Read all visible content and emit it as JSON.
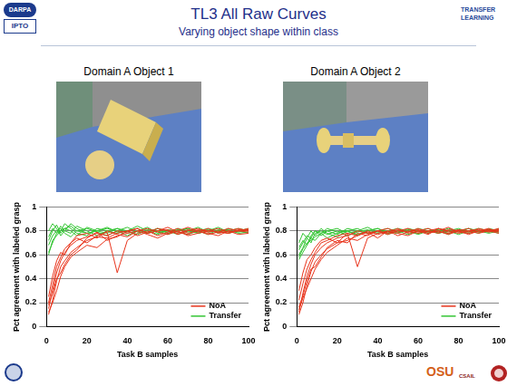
{
  "slide": {
    "logos": [
      "DARPA",
      "IPTO",
      "TRANSFER LEARNING",
      "OSU",
      "CSAIL"
    ],
    "title": "TL3 All Raw Curves",
    "subtitle": "Varying object shape within class",
    "panels": [
      "Domain A Object 1",
      "Domain A Object 2"
    ]
  },
  "chart_data": [
    {
      "type": "line",
      "x_label": "Task B samples",
      "y_label": "Pct agreement with labeled grasp",
      "x": [
        1,
        3,
        5,
        7,
        9,
        12,
        15,
        20,
        25,
        30,
        35,
        40,
        45,
        50,
        55,
        60,
        65,
        70,
        75,
        80,
        85,
        90,
        95,
        100
      ],
      "xlim": [
        0,
        100
      ],
      "xticks": [
        0,
        20,
        40,
        60,
        80,
        100
      ],
      "ylim": [
        0,
        1
      ],
      "yticks": [
        0,
        0.2,
        0.4,
        0.6,
        0.8,
        1
      ],
      "grid": "y",
      "legend": "lower right",
      "series": [
        {
          "name": "NoA",
          "color": "#e8341c",
          "values": [
            0.15,
            0.3,
            0.45,
            0.55,
            0.62,
            0.68,
            0.72,
            0.75,
            0.78,
            0.76,
            0.8,
            0.79,
            0.82,
            0.78,
            0.8,
            0.81,
            0.77,
            0.8,
            0.82,
            0.79,
            0.8,
            0.78,
            0.81,
            0.8
          ]
        },
        {
          "name": "NoA",
          "color": "#e8341c",
          "values": [
            0.2,
            0.35,
            0.5,
            0.58,
            0.65,
            0.7,
            0.74,
            0.7,
            0.76,
            0.79,
            0.45,
            0.72,
            0.78,
            0.8,
            0.76,
            0.79,
            0.82,
            0.78,
            0.8,
            0.77,
            0.79,
            0.82,
            0.8,
            0.79
          ]
        },
        {
          "name": "NoA",
          "color": "#e8341c",
          "values": [
            0.1,
            0.22,
            0.38,
            0.5,
            0.55,
            0.62,
            0.66,
            0.72,
            0.75,
            0.74,
            0.78,
            0.8,
            0.76,
            0.79,
            0.82,
            0.8,
            0.78,
            0.81,
            0.79,
            0.82,
            0.78,
            0.8,
            0.77,
            0.78
          ]
        },
        {
          "name": "NoA",
          "color": "#e8341c",
          "values": [
            0.25,
            0.42,
            0.55,
            0.62,
            0.6,
            0.7,
            0.76,
            0.78,
            0.74,
            0.8,
            0.77,
            0.75,
            0.8,
            0.77,
            0.74,
            0.78,
            0.8,
            0.76,
            0.78,
            0.8,
            0.82,
            0.79,
            0.8,
            0.82
          ]
        },
        {
          "name": "NoA",
          "color": "#e8341c",
          "values": [
            0.18,
            0.28,
            0.4,
            0.45,
            0.52,
            0.6,
            0.64,
            0.74,
            0.79,
            0.72,
            0.76,
            0.78,
            0.8,
            0.82,
            0.79,
            0.77,
            0.8,
            0.83,
            0.8,
            0.78,
            0.76,
            0.8,
            0.82,
            0.8
          ]
        },
        {
          "name": "NoA",
          "color": "#e8341c",
          "values": [
            0.12,
            0.2,
            0.3,
            0.42,
            0.5,
            0.58,
            0.62,
            0.68,
            0.66,
            0.73,
            0.75,
            0.8,
            0.82,
            0.78,
            0.8,
            0.83,
            0.79,
            0.77,
            0.81,
            0.8,
            0.79,
            0.78,
            0.8,
            0.81
          ]
        },
        {
          "name": "Transfer",
          "color": "#33c433",
          "values": [
            0.72,
            0.8,
            0.85,
            0.78,
            0.82,
            0.8,
            0.76,
            0.83,
            0.8,
            0.78,
            0.82,
            0.8,
            0.77,
            0.81,
            0.8,
            0.79,
            0.82,
            0.8,
            0.78,
            0.8,
            0.83,
            0.79,
            0.8,
            0.78
          ]
        },
        {
          "name": "Transfer",
          "color": "#33c433",
          "values": [
            0.62,
            0.7,
            0.78,
            0.84,
            0.8,
            0.86,
            0.82,
            0.78,
            0.8,
            0.83,
            0.79,
            0.8,
            0.82,
            0.78,
            0.8,
            0.77,
            0.8,
            0.82,
            0.79,
            0.81,
            0.78,
            0.8,
            0.82,
            0.8
          ]
        },
        {
          "name": "Transfer",
          "color": "#33c433",
          "values": [
            0.8,
            0.86,
            0.82,
            0.76,
            0.8,
            0.78,
            0.84,
            0.8,
            0.76,
            0.8,
            0.82,
            0.78,
            0.8,
            0.83,
            0.78,
            0.8,
            0.79,
            0.77,
            0.8,
            0.82,
            0.8,
            0.81,
            0.78,
            0.79
          ]
        },
        {
          "name": "Transfer",
          "color": "#33c433",
          "values": [
            0.68,
            0.76,
            0.8,
            0.82,
            0.78,
            0.75,
            0.8,
            0.82,
            0.79,
            0.76,
            0.8,
            0.83,
            0.79,
            0.78,
            0.82,
            0.8,
            0.77,
            0.8,
            0.83,
            0.79,
            0.8,
            0.78,
            0.8,
            0.82
          ]
        },
        {
          "name": "Transfer",
          "color": "#33c433",
          "values": [
            0.75,
            0.82,
            0.78,
            0.8,
            0.86,
            0.82,
            0.78,
            0.76,
            0.82,
            0.8,
            0.78,
            0.8,
            0.84,
            0.8,
            0.77,
            0.81,
            0.8,
            0.82,
            0.78,
            0.8,
            0.79,
            0.82,
            0.8,
            0.8
          ]
        },
        {
          "name": "Transfer",
          "color": "#33c433",
          "values": [
            0.6,
            0.72,
            0.76,
            0.8,
            0.82,
            0.84,
            0.8,
            0.78,
            0.8,
            0.82,
            0.8,
            0.76,
            0.8,
            0.79,
            0.82,
            0.78,
            0.81,
            0.79,
            0.8,
            0.77,
            0.81,
            0.8,
            0.79,
            0.81
          ]
        }
      ]
    },
    {
      "type": "line",
      "x_label": "Task B samples",
      "y_label": "Pct agreement with labeled grasp",
      "x": [
        1,
        3,
        5,
        7,
        9,
        12,
        15,
        20,
        25,
        30,
        35,
        40,
        45,
        50,
        55,
        60,
        65,
        70,
        75,
        80,
        85,
        90,
        95,
        100
      ],
      "xlim": [
        0,
        100
      ],
      "xticks": [
        0,
        20,
        40,
        60,
        80,
        100
      ],
      "ylim": [
        0,
        1
      ],
      "yticks": [
        0,
        0.2,
        0.4,
        0.6,
        0.8,
        1
      ],
      "grid": "y",
      "legend": "lower right",
      "series": [
        {
          "name": "NoA",
          "color": "#e8341c",
          "values": [
            0.12,
            0.28,
            0.42,
            0.52,
            0.6,
            0.66,
            0.7,
            0.74,
            0.76,
            0.8,
            0.78,
            0.8,
            0.77,
            0.8,
            0.82,
            0.79,
            0.8,
            0.78,
            0.81,
            0.8,
            0.79,
            0.82,
            0.8,
            0.78
          ]
        },
        {
          "name": "NoA",
          "color": "#e8341c",
          "values": [
            0.22,
            0.36,
            0.48,
            0.56,
            0.62,
            0.7,
            0.72,
            0.76,
            0.78,
            0.5,
            0.74,
            0.78,
            0.8,
            0.76,
            0.79,
            0.81,
            0.78,
            0.8,
            0.77,
            0.8,
            0.82,
            0.79,
            0.8,
            0.81
          ]
        },
        {
          "name": "NoA",
          "color": "#e8341c",
          "values": [
            0.1,
            0.2,
            0.34,
            0.46,
            0.54,
            0.6,
            0.65,
            0.7,
            0.72,
            0.76,
            0.8,
            0.77,
            0.79,
            0.82,
            0.78,
            0.8,
            0.77,
            0.82,
            0.8,
            0.78,
            0.8,
            0.81,
            0.79,
            0.8
          ]
        },
        {
          "name": "NoA",
          "color": "#e8341c",
          "values": [
            0.3,
            0.45,
            0.56,
            0.6,
            0.66,
            0.72,
            0.74,
            0.7,
            0.78,
            0.76,
            0.79,
            0.74,
            0.8,
            0.78,
            0.76,
            0.8,
            0.82,
            0.79,
            0.78,
            0.8,
            0.77,
            0.8,
            0.82,
            0.79
          ]
        },
        {
          "name": "NoA",
          "color": "#e8341c",
          "values": [
            0.16,
            0.26,
            0.38,
            0.48,
            0.5,
            0.58,
            0.66,
            0.72,
            0.7,
            0.78,
            0.76,
            0.8,
            0.82,
            0.79,
            0.8,
            0.78,
            0.8,
            0.82,
            0.79,
            0.81,
            0.8,
            0.78,
            0.8,
            0.82
          ]
        },
        {
          "name": "NoA",
          "color": "#e8341c",
          "values": [
            0.14,
            0.24,
            0.32,
            0.4,
            0.48,
            0.56,
            0.62,
            0.68,
            0.74,
            0.72,
            0.77,
            0.8,
            0.78,
            0.81,
            0.79,
            0.82,
            0.79,
            0.8,
            0.83,
            0.79,
            0.78,
            0.8,
            0.81,
            0.8
          ]
        },
        {
          "name": "Transfer",
          "color": "#33c433",
          "values": [
            0.58,
            0.65,
            0.7,
            0.72,
            0.75,
            0.78,
            0.74,
            0.78,
            0.8,
            0.76,
            0.8,
            0.82,
            0.78,
            0.8,
            0.77,
            0.8,
            0.82,
            0.78,
            0.8,
            0.79,
            0.82,
            0.8,
            0.78,
            0.8
          ]
        },
        {
          "name": "Transfer",
          "color": "#33c433",
          "values": [
            0.66,
            0.72,
            0.68,
            0.76,
            0.8,
            0.76,
            0.8,
            0.82,
            0.78,
            0.8,
            0.83,
            0.79,
            0.8,
            0.78,
            0.81,
            0.8,
            0.78,
            0.82,
            0.8,
            0.77,
            0.8,
            0.82,
            0.8,
            0.79
          ]
        },
        {
          "name": "Transfer",
          "color": "#33c433",
          "values": [
            0.7,
            0.78,
            0.74,
            0.8,
            0.76,
            0.82,
            0.78,
            0.75,
            0.8,
            0.82,
            0.78,
            0.8,
            0.82,
            0.79,
            0.8,
            0.78,
            0.8,
            0.81,
            0.78,
            0.8,
            0.82,
            0.79,
            0.81,
            0.8
          ]
        },
        {
          "name": "Transfer",
          "color": "#33c433",
          "values": [
            0.6,
            0.66,
            0.74,
            0.7,
            0.78,
            0.8,
            0.77,
            0.8,
            0.76,
            0.79,
            0.81,
            0.78,
            0.8,
            0.82,
            0.8,
            0.77,
            0.8,
            0.79,
            0.82,
            0.8,
            0.78,
            0.8,
            0.79,
            0.82
          ]
        },
        {
          "name": "Transfer",
          "color": "#33c433",
          "values": [
            0.64,
            0.7,
            0.76,
            0.74,
            0.8,
            0.78,
            0.82,
            0.79,
            0.8,
            0.77,
            0.8,
            0.82,
            0.79,
            0.78,
            0.82,
            0.8,
            0.79,
            0.8,
            0.77,
            0.81,
            0.8,
            0.78,
            0.82,
            0.8
          ]
        },
        {
          "name": "Transfer",
          "color": "#33c433",
          "values": [
            0.56,
            0.62,
            0.68,
            0.74,
            0.72,
            0.78,
            0.8,
            0.77,
            0.82,
            0.8,
            0.78,
            0.8,
            0.77,
            0.8,
            0.79,
            0.82,
            0.8,
            0.78,
            0.8,
            0.82,
            0.79,
            0.8,
            0.8,
            0.78
          ]
        }
      ]
    }
  ]
}
